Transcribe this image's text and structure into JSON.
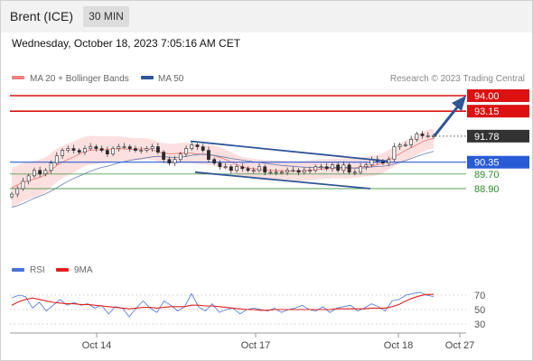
{
  "header": {
    "title": "Brent (ICE)",
    "timeframe": "30 MIN"
  },
  "timestamp": "Wednesday, October 18, 2023 7:05:16 AM CET",
  "legend": {
    "bollinger": {
      "label": "MA 20 + Bollinger Bands",
      "color": "#f08080"
    },
    "ma50": {
      "label": "MA 50",
      "color": "#2f5597"
    },
    "credit": "Research © 2023 Trading Central"
  },
  "rsi_legend": {
    "rsi": {
      "label": "RSI",
      "color": "#4a72d8"
    },
    "ma9": {
      "label": "9MA",
      "color": "#e02020"
    }
  },
  "chart_data": [
    {
      "type": "candlestick",
      "title": "Brent (ICE)",
      "timeframe": "30 MIN",
      "x_labels": [
        "Oct 14",
        "Oct 17",
        "Oct 18",
        "Oct 27"
      ],
      "price_levels": [
        {
          "value": 94.0,
          "label": "94.00",
          "kind": "resistance",
          "color": "#dd1111"
        },
        {
          "value": 93.15,
          "label": "93.15",
          "kind": "resistance",
          "color": "#dd1111"
        },
        {
          "value": 91.78,
          "label": "91.78",
          "kind": "last-price",
          "color": "#333333"
        },
        {
          "value": 90.35,
          "label": "90.35",
          "kind": "pivot",
          "color": "#2a5bd7"
        },
        {
          "value": 89.7,
          "label": "89.70",
          "kind": "support",
          "color": "#2a8a2a"
        },
        {
          "value": 88.9,
          "label": "88.90",
          "kind": "support",
          "color": "#2a8a2a"
        }
      ],
      "closes": [
        88.6,
        88.9,
        89.3,
        89.6,
        89.9,
        89.7,
        89.9,
        90.3,
        90.7,
        91.0,
        91.1,
        91.0,
        90.9,
        91.1,
        91.2,
        91.1,
        91.0,
        90.8,
        91.1,
        91.2,
        91.2,
        91.1,
        91.0,
        91.0,
        91.1,
        91.2,
        90.9,
        90.5,
        90.3,
        90.5,
        90.8,
        91.1,
        91.3,
        91.2,
        91.0,
        90.5,
        90.3,
        90.1,
        90.1,
        89.9,
        90.1,
        90.0,
        89.9,
        89.9,
        90.1,
        89.8,
        89.8,
        89.8,
        89.8,
        89.9,
        89.9,
        89.8,
        89.9,
        89.9,
        90.1,
        90.1,
        90.0,
        90.2,
        89.9,
        90.2,
        89.8,
        89.8,
        90.1,
        90.2,
        90.5,
        90.4,
        90.3,
        90.5,
        91.2,
        91.3,
        91.3,
        91.6,
        91.9,
        91.8,
        91.8,
        91.8
      ]
    },
    {
      "type": "line",
      "title": "RSI",
      "series": [
        {
          "name": "RSI",
          "color": "#4a72d8",
          "values": [
            66,
            70,
            68,
            52,
            60,
            48,
            56,
            64,
            56,
            60,
            56,
            58,
            52,
            56,
            44,
            54,
            52,
            40,
            52,
            62,
            52,
            46,
            62,
            56,
            48,
            54,
            72,
            54,
            48,
            58,
            46,
            50,
            52,
            44,
            50,
            52,
            50,
            48,
            52,
            46,
            50,
            52,
            56,
            50,
            48,
            54,
            46,
            52,
            54,
            56,
            48,
            52,
            58,
            54,
            48,
            62,
            64,
            70,
            72,
            74,
            70,
            68
          ]
        },
        {
          "name": "9MA",
          "color": "#e02020",
          "values": [
            56,
            61,
            64,
            66,
            64,
            62,
            60,
            59,
            58,
            58,
            57,
            57,
            56,
            55,
            54,
            53,
            52,
            51,
            52,
            53,
            53,
            52,
            53,
            54,
            54,
            54,
            56,
            56,
            55,
            55,
            54,
            53,
            52,
            51,
            50,
            50,
            49,
            49,
            50,
            50,
            50,
            50,
            50,
            50,
            50,
            50,
            50,
            51,
            51,
            51,
            51,
            51,
            52,
            52,
            52,
            54,
            57,
            62,
            66,
            69,
            71,
            71
          ]
        }
      ],
      "y_ticks": [
        70,
        50,
        30
      ]
    }
  ]
}
